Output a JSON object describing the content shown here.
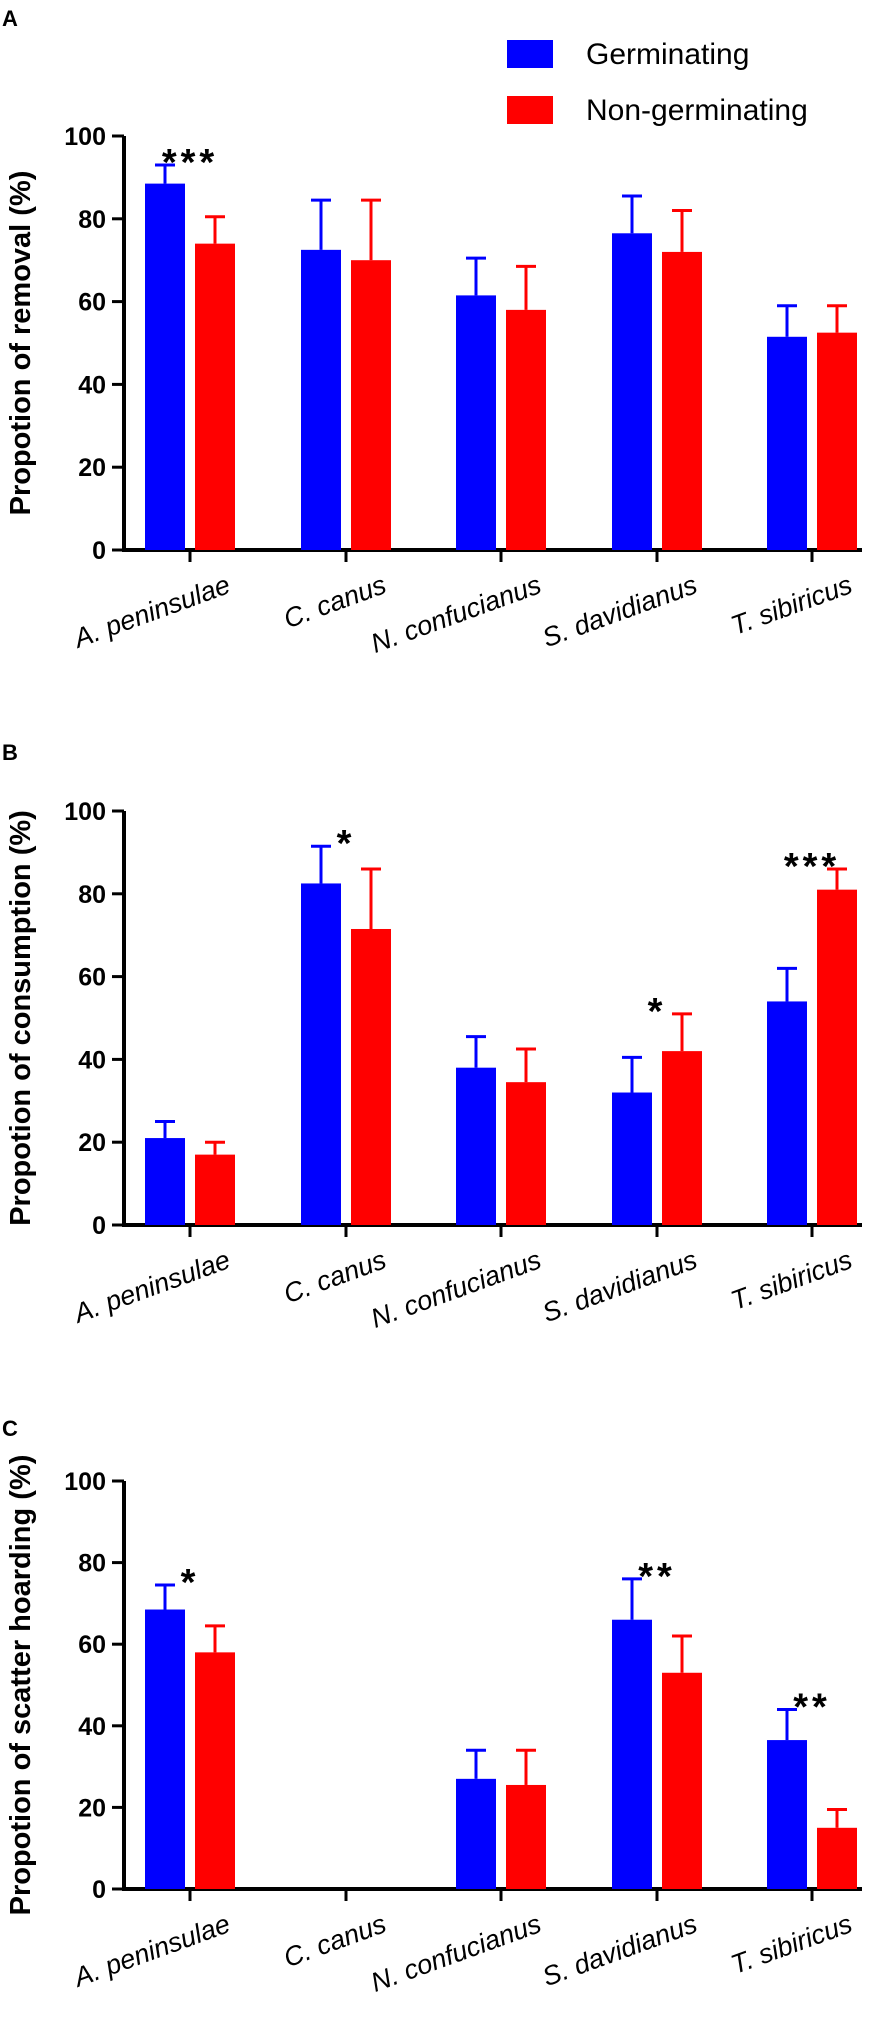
{
  "legend": {
    "germinating": "Germinating",
    "non_germinating": "Non-germinating"
  },
  "colors": {
    "germinating": "#0000ff",
    "non_germinating": "#ff0000",
    "axis": "#000000"
  },
  "chart_data": [
    {
      "type": "bar",
      "panel": "A",
      "ylabel": "Propotion of removal  (%)",
      "ylim": [
        0,
        100
      ],
      "yticks": [
        "0",
        "20",
        "40",
        "60",
        "80",
        "100"
      ],
      "categories": [
        "A. peninsulae",
        "C. canus",
        "N. confucianus",
        "S. davidianus",
        "T. sibiricus"
      ],
      "series": [
        {
          "name": "Germinating",
          "values": [
            88.5,
            72.5,
            61.5,
            76.5,
            51.5
          ],
          "errors": [
            4.5,
            12.0,
            9.0,
            9.0,
            7.5
          ]
        },
        {
          "name": "Non-germinating",
          "values": [
            74.0,
            70.0,
            58.0,
            72.0,
            52.5
          ],
          "errors": [
            6.5,
            14.5,
            10.5,
            10.0,
            6.5
          ]
        }
      ],
      "significance": [
        "***",
        "",
        "",
        "",
        ""
      ]
    },
    {
      "type": "bar",
      "panel": "B",
      "ylabel": "Propotion of consumption  (%)",
      "ylim": [
        0,
        100
      ],
      "yticks": [
        "0",
        "20",
        "40",
        "60",
        "80",
        "100"
      ],
      "categories": [
        "A. peninsulae",
        "C. canus",
        "N. confucianus",
        "S. davidianus",
        "T. sibiricus"
      ],
      "series": [
        {
          "name": "Germinating",
          "values": [
            21.0,
            82.5,
            38.0,
            32.0,
            54.0
          ],
          "errors": [
            4.0,
            9.0,
            7.5,
            8.5,
            8.0
          ]
        },
        {
          "name": "Non-germinating",
          "values": [
            17.0,
            71.5,
            34.5,
            42.0,
            81.0
          ],
          "errors": [
            3.0,
            14.5,
            8.0,
            9.0,
            5.0
          ]
        }
      ],
      "significance": [
        "",
        "*",
        "",
        "*",
        "***"
      ]
    },
    {
      "type": "bar",
      "panel": "C",
      "ylabel": "Propotion of scatter hoarding  (%)",
      "ylim": [
        0,
        100
      ],
      "yticks": [
        "0",
        "20",
        "40",
        "60",
        "80",
        "100"
      ],
      "categories": [
        "A. peninsulae",
        "C. canus",
        "N. confucianus",
        "S. davidianus",
        "T. sibiricus"
      ],
      "series": [
        {
          "name": "Germinating",
          "values": [
            68.5,
            0,
            27.0,
            66.0,
            36.5
          ],
          "errors": [
            6.0,
            0,
            7.0,
            10.0,
            7.5
          ]
        },
        {
          "name": "Non-germinating",
          "values": [
            58.0,
            0,
            25.5,
            53.0,
            15.0
          ],
          "errors": [
            6.5,
            0,
            8.5,
            9.0,
            4.5
          ]
        }
      ],
      "significance": [
        "*",
        "",
        "",
        "**",
        "**"
      ]
    }
  ]
}
